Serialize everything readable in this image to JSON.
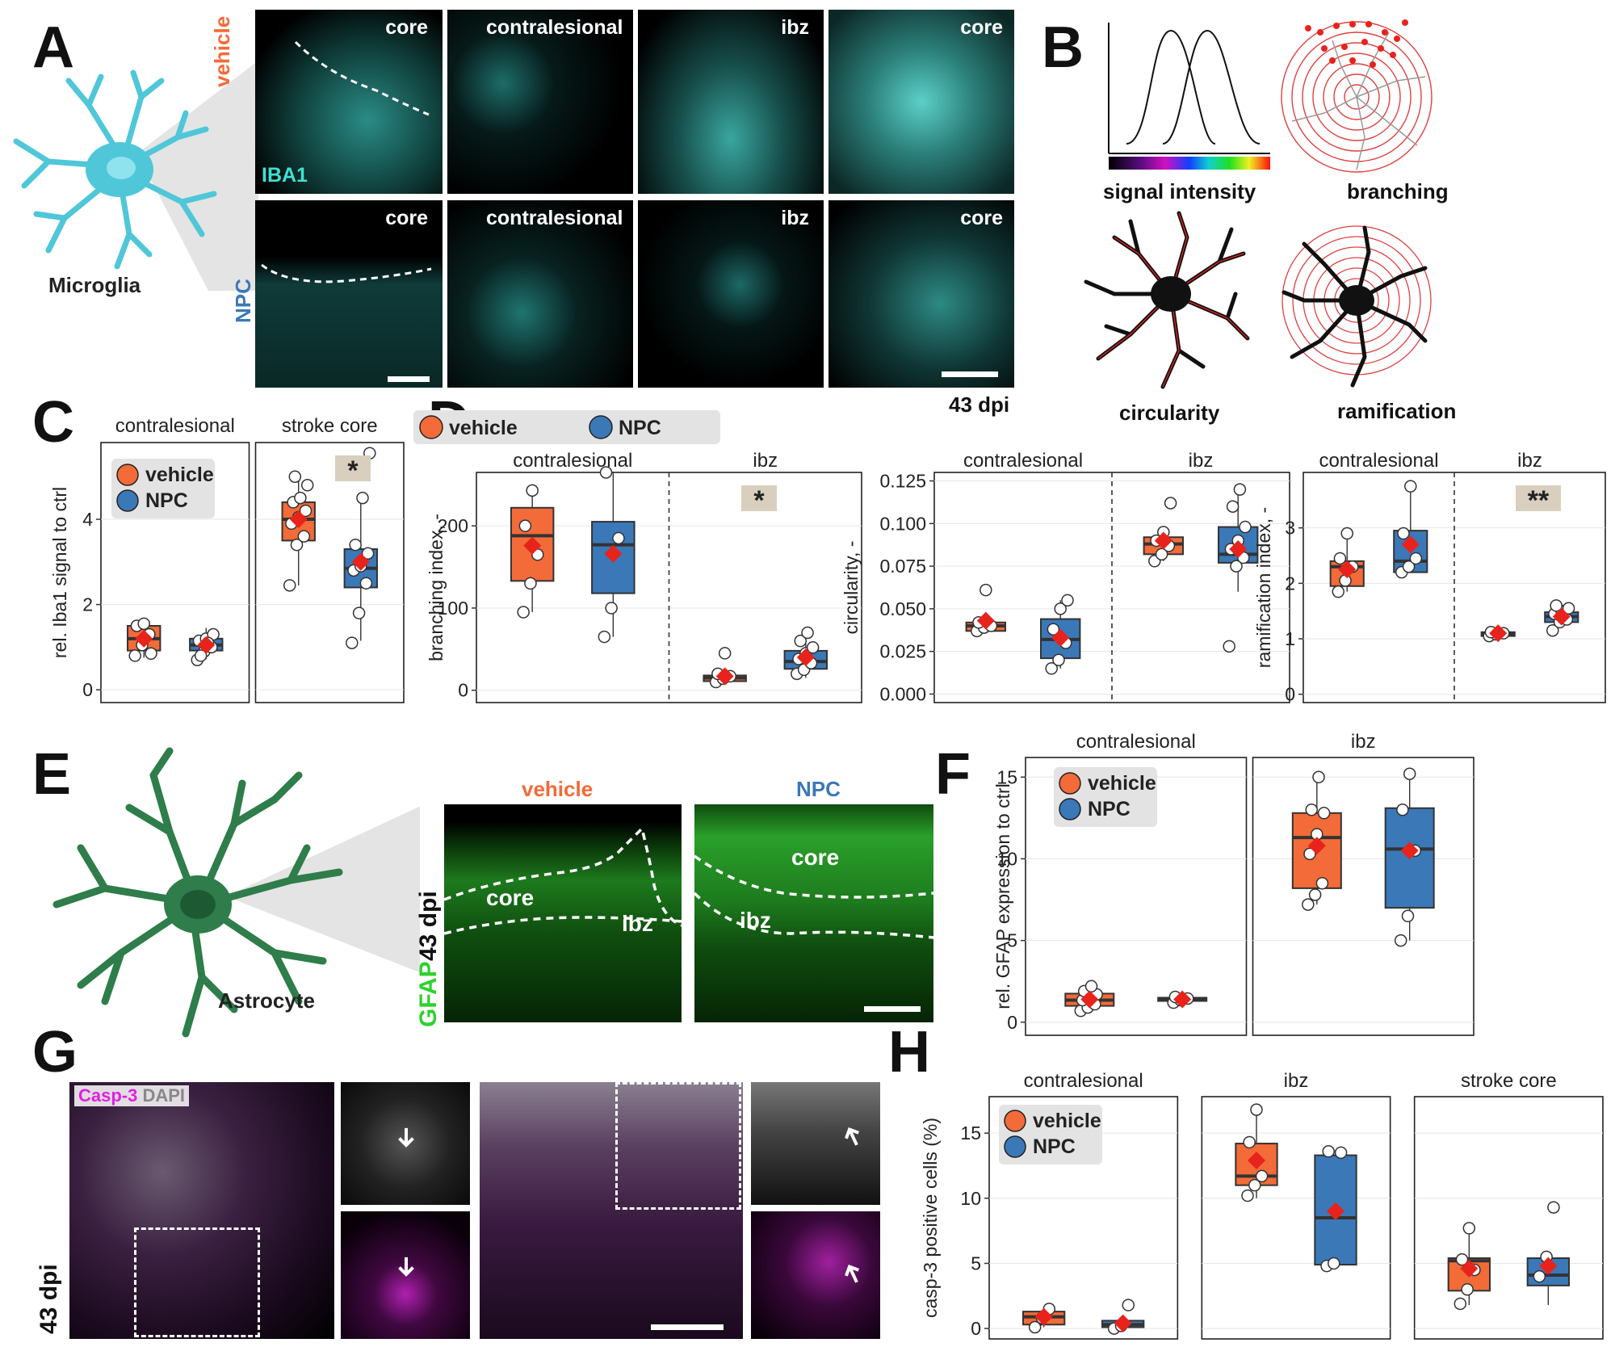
{
  "panels": {
    "A": "A",
    "B": "B",
    "C": "C",
    "D": "D",
    "E": "E",
    "F": "F",
    "G": "G",
    "H": "H"
  },
  "colors": {
    "vehicle": "#f26b38",
    "npc": "#3b78b8",
    "iba1": "#40e0d0",
    "gfap": "#2fd12f",
    "casp3": "#e020e0",
    "mean": "#e8231b",
    "sig_box": "#d8cfbe"
  },
  "panel_A": {
    "cell_label": "Microglia",
    "row_vehicle": "vehicle",
    "row_npc": "NPC",
    "stain": "IBA1",
    "tiles_top": [
      "core",
      "contralesional",
      "ibz",
      "core"
    ],
    "tiles_bottom": [
      "core",
      "contralesional",
      "ibz",
      "core"
    ],
    "time": "43 dpi"
  },
  "panel_B": {
    "signal": "signal intensity",
    "branching": "branching",
    "circularity": "circularity",
    "ramification": "ramification"
  },
  "panel_C": {
    "ylabel": "rel. Iba1 signal to ctrl",
    "facets": [
      "contralesional",
      "stroke core"
    ],
    "sig": "*",
    "legend": [
      "vehicle",
      "NPC"
    ],
    "yticks": [
      "0",
      "2",
      "4"
    ]
  },
  "panel_D": {
    "legend": [
      "vehicle",
      "NPC"
    ],
    "plots": [
      {
        "ylabel": "branching index, -",
        "facets": [
          "contralesional",
          "ibz"
        ],
        "sig": "*",
        "yticks": [
          "0",
          "100",
          "200"
        ]
      },
      {
        "ylabel": "circularity, -",
        "facets": [
          "contralesional",
          "ibz"
        ],
        "sig": "",
        "yticks": [
          "0.000",
          "0.025",
          "0.050",
          "0.075",
          "0.100",
          "0.125"
        ]
      },
      {
        "ylabel": "ramification index, -",
        "facets": [
          "contralesional",
          "ibz"
        ],
        "sig": "**",
        "yticks": [
          "0",
          "1",
          "2",
          "3"
        ]
      }
    ]
  },
  "panel_E": {
    "cell_label": "Astrocyte",
    "col_vehicle": "vehicle",
    "col_npc": "NPC",
    "stain": "GFAP",
    "time": "43 dpi",
    "core": "core",
    "ibz": "ibz"
  },
  "panel_F": {
    "ylabel": "rel. GFAP expression to ctrl",
    "facets": [
      "contralesional",
      "ibz"
    ],
    "legend": [
      "vehicle",
      "NPC"
    ],
    "yticks": [
      "0",
      "5",
      "10",
      "15"
    ]
  },
  "panel_G": {
    "stain1": "Casp-3",
    "stain2": "DAPI",
    "time": "43 dpi"
  },
  "panel_H": {
    "ylabel": "casp-3 positive cells (%)",
    "facets": [
      "contralesional",
      "ibz",
      "stroke core"
    ],
    "legend": [
      "vehicle",
      "NPC"
    ],
    "yticks": [
      "0",
      "5",
      "10",
      "15"
    ]
  },
  "chart_data": [
    {
      "type": "box",
      "panel": "C",
      "ylabel": "rel. Iba1 signal to ctrl",
      "ylim": [
        -0.3,
        5.8
      ],
      "facets": [
        {
          "name": "contralesional",
          "groups": [
            {
              "name": "vehicle",
              "q1": 0.92,
              "median": 1.2,
              "q3": 1.5,
              "whisker_low": 0.75,
              "whisker_high": 1.55,
              "mean": 1.2,
              "points": [
                0.8,
                1.05,
                1.3,
                1.5,
                1.55,
                0.85
              ]
            },
            {
              "name": "NPC",
              "q1": 0.92,
              "median": 1.05,
              "q3": 1.2,
              "whisker_low": 0.72,
              "whisker_high": 1.45,
              "mean": 1.05,
              "points": [
                0.7,
                0.9,
                1.0,
                1.15,
                1.2,
                1.3,
                0.8,
                1.1
              ]
            }
          ]
        },
        {
          "name": "stroke core",
          "groups": [
            {
              "name": "vehicle",
              "q1": 3.5,
              "median": 4.0,
              "q3": 4.4,
              "whisker_low": 2.45,
              "whisker_high": 5.0,
              "mean": 4.0,
              "points": [
                2.45,
                3.4,
                3.6,
                3.9,
                4.05,
                4.2,
                4.4,
                4.5,
                4.8,
                5.0
              ]
            },
            {
              "name": "NPC",
              "q1": 2.4,
              "median": 2.85,
              "q3": 3.3,
              "whisker_low": 1.15,
              "whisker_high": 4.5,
              "mean": 3.0,
              "points": [
                1.1,
                1.8,
                2.5,
                2.8,
                2.9,
                3.2,
                3.4,
                4.5,
                5.55
              ]
            }
          ]
        }
      ]
    },
    {
      "type": "box",
      "panel": "D",
      "ylabel": "branching index, -",
      "ylim": [
        -15,
        265
      ],
      "facets": [
        {
          "name": "contralesional",
          "groups": [
            {
              "name": "vehicle",
              "q1": 133,
              "median": 188,
              "q3": 222,
              "whisker_low": 95,
              "whisker_high": 243,
              "mean": 176,
              "points": [
                95,
                130,
                165,
                200,
                243
              ]
            },
            {
              "name": "NPC",
              "q1": 118,
              "median": 177,
              "q3": 205,
              "whisker_low": 65,
              "whisker_high": 265,
              "mean": 166,
              "points": [
                65,
                100,
                185,
                265
              ]
            }
          ]
        },
        {
          "name": "ibz",
          "groups": [
            {
              "name": "vehicle",
              "q1": 11,
              "median": 15,
              "q3": 18,
              "whisker_low": 10,
              "whisker_high": 20,
              "mean": 17,
              "points": [
                10,
                14,
                17,
                20,
                45
              ]
            },
            {
              "name": "NPC",
              "q1": 26,
              "median": 35,
              "q3": 48,
              "whisker_low": 15,
              "whisker_high": 70,
              "mean": 40,
              "points": [
                20,
                25,
                33,
                38,
                45,
                52,
                60,
                70
              ]
            }
          ]
        }
      ]
    },
    {
      "type": "box",
      "panel": "D",
      "ylabel": "circularity, -",
      "ylim": [
        -0.005,
        0.13
      ],
      "facets": [
        {
          "name": "contralesional",
          "groups": [
            {
              "name": "vehicle",
              "q1": 0.037,
              "median": 0.04,
              "q3": 0.042,
              "whisker_low": 0.036,
              "whisker_high": 0.045,
              "mean": 0.043,
              "points": [
                0.037,
                0.039,
                0.04,
                0.042,
                0.061
              ]
            },
            {
              "name": "NPC",
              "q1": 0.021,
              "median": 0.032,
              "q3": 0.044,
              "whisker_low": 0.015,
              "whisker_high": 0.055,
              "mean": 0.033,
              "points": [
                0.015,
                0.02,
                0.03,
                0.038,
                0.05,
                0.055
              ]
            }
          ]
        },
        {
          "name": "ibz",
          "groups": [
            {
              "name": "vehicle",
              "q1": 0.082,
              "median": 0.088,
              "q3": 0.092,
              "whisker_low": 0.078,
              "whisker_high": 0.095,
              "mean": 0.09,
              "points": [
                0.078,
                0.082,
                0.087,
                0.09,
                0.095,
                0.112
              ]
            },
            {
              "name": "NPC",
              "q1": 0.077,
              "median": 0.082,
              "q3": 0.098,
              "whisker_low": 0.06,
              "whisker_high": 0.12,
              "mean": 0.085,
              "points": [
                0.028,
                0.075,
                0.08,
                0.085,
                0.09,
                0.098,
                0.11,
                0.12
              ]
            }
          ]
        }
      ]
    },
    {
      "type": "box",
      "panel": "D",
      "ylabel": "ramification index, -",
      "ylim": [
        -0.15,
        4.0
      ],
      "facets": [
        {
          "name": "contralesional",
          "groups": [
            {
              "name": "vehicle",
              "q1": 1.95,
              "median": 2.3,
              "q3": 2.4,
              "whisker_low": 1.85,
              "whisker_high": 2.9,
              "mean": 2.25,
              "points": [
                1.85,
                2.05,
                2.3,
                2.45,
                2.9
              ]
            },
            {
              "name": "NPC",
              "q1": 2.2,
              "median": 2.4,
              "q3": 2.95,
              "whisker_low": 2.2,
              "whisker_high": 3.75,
              "mean": 2.7,
              "points": [
                2.2,
                2.3,
                2.45,
                2.9,
                3.75
              ]
            }
          ]
        },
        {
          "name": "ibz",
          "groups": [
            {
              "name": "vehicle",
              "q1": 1.05,
              "median": 1.08,
              "q3": 1.12,
              "whisker_low": 1.02,
              "whisker_high": 1.15,
              "mean": 1.1,
              "points": [
                1.05,
                1.08,
                1.1,
                1.12
              ]
            },
            {
              "name": "NPC",
              "q1": 1.3,
              "median": 1.4,
              "q3": 1.48,
              "whisker_low": 1.2,
              "whisker_high": 1.6,
              "mean": 1.4,
              "points": [
                1.15,
                1.3,
                1.35,
                1.45,
                1.5,
                1.55,
                1.6
              ]
            }
          ]
        }
      ]
    },
    {
      "type": "box",
      "panel": "F",
      "ylabel": "rel. GFAP expression to ctrl",
      "ylim": [
        -0.8,
        16.2
      ],
      "facets": [
        {
          "name": "contralesional",
          "groups": [
            {
              "name": "vehicle",
              "q1": 1.0,
              "median": 1.35,
              "q3": 1.75,
              "whisker_low": 0.7,
              "whisker_high": 2.3,
              "mean": 1.4,
              "points": [
                0.7,
                0.9,
                1.1,
                1.35,
                1.5,
                1.7,
                1.9,
                2.2
              ]
            },
            {
              "name": "NPC",
              "q1": 1.3,
              "median": 1.4,
              "q3": 1.5,
              "whisker_low": 1.2,
              "whisker_high": 1.6,
              "mean": 1.4,
              "points": [
                1.2,
                1.35,
                1.45,
                1.55
              ]
            }
          ]
        },
        {
          "name": "ibz",
          "groups": [
            {
              "name": "vehicle",
              "q1": 8.2,
              "median": 11.3,
              "q3": 12.8,
              "whisker_low": 7.2,
              "whisker_high": 15.0,
              "mean": 10.8,
              "points": [
                7.2,
                7.8,
                8.5,
                10.3,
                11.5,
                12.8,
                13.0,
                15.0
              ]
            },
            {
              "name": "NPC",
              "q1": 7.0,
              "median": 10.6,
              "q3": 13.1,
              "whisker_low": 5.0,
              "whisker_high": 15.0,
              "mean": 10.5,
              "points": [
                5.0,
                6.5,
                10.5,
                13.0,
                15.2
              ]
            }
          ]
        }
      ]
    },
    {
      "type": "box",
      "panel": "H",
      "ylabel": "casp-3 positive cells (%)",
      "ylim": [
        -0.8,
        17.8
      ],
      "facets": [
        {
          "name": "contralesional",
          "groups": [
            {
              "name": "vehicle",
              "q1": 0.3,
              "median": 0.9,
              "q3": 1.3,
              "whisker_low": 0.1,
              "whisker_high": 1.5,
              "mean": 0.9,
              "points": [
                0.1,
                0.8,
                1.5
              ]
            },
            {
              "name": "NPC",
              "q1": 0.1,
              "median": 0.3,
              "q3": 0.6,
              "whisker_low": 0.0,
              "whisker_high": 0.8,
              "mean": 0.4,
              "points": [
                0.0,
                0.2,
                1.8
              ]
            }
          ]
        },
        {
          "name": "ibz",
          "groups": [
            {
              "name": "vehicle",
              "q1": 11.0,
              "median": 11.7,
              "q3": 14.2,
              "whisker_low": 10.0,
              "whisker_high": 16.8,
              "mean": 12.9,
              "points": [
                10.2,
                11.0,
                11.7,
                14.3,
                16.8
              ]
            },
            {
              "name": "NPC",
              "q1": 4.9,
              "median": 8.5,
              "q3": 13.3,
              "whisker_low": 4.8,
              "whisker_high": 13.7,
              "mean": 9.0,
              "points": [
                4.8,
                5.0,
                13.5,
                13.6
              ]
            }
          ]
        },
        {
          "name": "stroke core",
          "groups": [
            {
              "name": "vehicle",
              "q1": 2.9,
              "median": 5.2,
              "q3": 5.4,
              "whisker_low": 1.8,
              "whisker_high": 7.8,
              "mean": 4.6,
              "points": [
                1.9,
                3.0,
                4.5,
                5.3,
                7.7
              ]
            },
            {
              "name": "NPC",
              "q1": 3.3,
              "median": 4.1,
              "q3": 5.4,
              "whisker_low": 1.8,
              "whisker_high": 5.8,
              "mean": 4.8,
              "points": [
                4.0,
                5.5,
                9.3
              ]
            }
          ]
        }
      ]
    }
  ]
}
